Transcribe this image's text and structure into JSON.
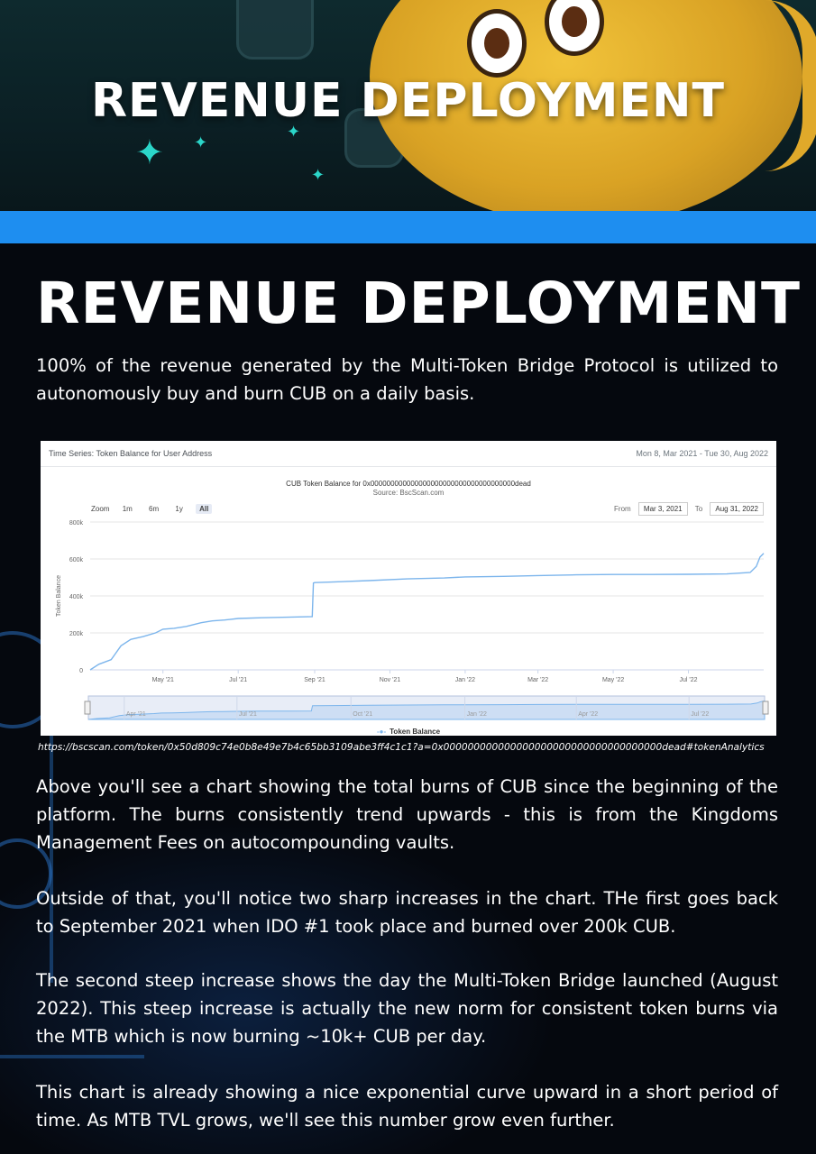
{
  "banner": {
    "title": "REVENUE DEPLOYMENT"
  },
  "heading": "REVENUE DEPLOYMENT",
  "intro": "100% of the revenue generated by the Multi-Token Bridge Protocol is utilized to autonomously buy and burn CUB on a daily basis.",
  "chart_panel": {
    "header_title": "Time Series: Token Balance for User Address",
    "header_range": "Mon 8, Mar 2021 - Tue 30, Aug 2022",
    "zoom_label": "Zoom",
    "zoom_buttons": [
      "1m",
      "6m",
      "1y",
      "All"
    ],
    "zoom_active": "All",
    "from_label": "From",
    "from_value": "Mar 3, 2021",
    "to_label": "To",
    "to_value": "Aug 31, 2022",
    "legend": "Token Balance",
    "line_color": "#7cb5ec",
    "navigator_ticks": [
      "Apr '21",
      "Jul '21",
      "Oct '21",
      "Jan '22",
      "Apr '22",
      "Jul '22"
    ]
  },
  "chart_data": {
    "type": "line",
    "title": "CUB Token Balance for 0x000000000000000000000000000000000000dead",
    "subtitle": "Source: BscScan.com",
    "xlabel": "",
    "ylabel": "Token Balance",
    "ylim": [
      0,
      800000
    ],
    "y_ticks": [
      "0",
      "200k",
      "400k",
      "600k",
      "800k"
    ],
    "x_ticks": [
      "May '21",
      "Jul '21",
      "Sep '21",
      "Nov '21",
      "Jan '22",
      "Mar '22",
      "May '22",
      "Jul '22"
    ],
    "series": [
      {
        "name": "Token Balance",
        "x": [
          "2021-03-03",
          "2021-03-10",
          "2021-03-20",
          "2021-03-28",
          "2021-04-05",
          "2021-04-15",
          "2021-04-25",
          "2021-05-01",
          "2021-05-10",
          "2021-05-20",
          "2021-06-01",
          "2021-06-10",
          "2021-06-20",
          "2021-07-01",
          "2021-07-20",
          "2021-08-10",
          "2021-08-30",
          "2021-08-31",
          "2021-09-01",
          "2021-09-15",
          "2021-10-15",
          "2021-11-15",
          "2021-12-15",
          "2022-01-01",
          "2022-02-01",
          "2022-03-01",
          "2022-04-01",
          "2022-05-01",
          "2022-06-01",
          "2022-07-01",
          "2022-08-01",
          "2022-08-20",
          "2022-08-25",
          "2022-08-28",
          "2022-08-31"
        ],
        "y": [
          0,
          30000,
          55000,
          130000,
          165000,
          180000,
          200000,
          220000,
          225000,
          235000,
          255000,
          265000,
          270000,
          278000,
          282000,
          285000,
          288000,
          470000,
          472000,
          475000,
          483000,
          492000,
          497000,
          503000,
          506000,
          510000,
          514000,
          516000,
          516000,
          517000,
          519000,
          527000,
          560000,
          610000,
          630000
        ]
      }
    ],
    "grid": true,
    "legend": "bottom-center"
  },
  "url_caption": "https://bscscan.com/token/0x50d809c74e0b8e49e7b4c65bb3109abe3ff4c1c1?a=0x000000000000000000000000000000000000dead#tokenAnalytics",
  "paragraphs": [
    "Above you'll see a chart showing the total burns of CUB since the beginning of the platform. The burns consistently trend upwards - this is from the Kingdoms Management Fees on autocompounding vaults.",
    "Outside of that, you'll notice two sharp increases in the chart. THe first goes back to September 2021 when IDO #1 took place and burned over 200k CUB.",
    "The second steep increase shows the day the Multi-Token Bridge launched (August 2022). This steep increase is actually the new norm for consistent token burns via the MTB which is now burning ~10k+ CUB per day.",
    "This chart is already showing a nice exponential curve upward in a short period of time. As MTB TVL grows, we'll see this number grow even further."
  ]
}
